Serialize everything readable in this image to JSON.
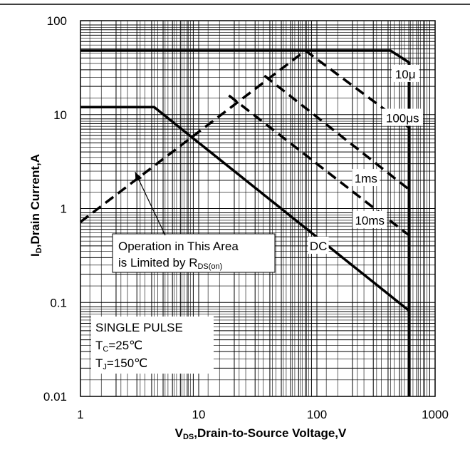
{
  "chart_data": {
    "type": "line",
    "title": "",
    "xscale": "log",
    "yscale": "log",
    "xlim": [
      1,
      1000
    ],
    "ylim": [
      0.01,
      100
    ],
    "grid": true,
    "xlabel": {
      "main": "V",
      "sub": "DS",
      "rest": ",Drain-to-Source Voltage,V"
    },
    "ylabel": {
      "main": "I",
      "sub": "D",
      "rest": ",Drain Current,A"
    },
    "xticks": [
      {
        "value": 1,
        "label": "1"
      },
      {
        "value": 10,
        "label": "10"
      },
      {
        "value": 100,
        "label": "100"
      },
      {
        "value": 1000,
        "label": "1000"
      }
    ],
    "yticks": [
      {
        "value": 0.01,
        "label": "0.01"
      },
      {
        "value": 0.1,
        "label": "0.1"
      },
      {
        "value": 1,
        "label": "1"
      },
      {
        "value": 10,
        "label": "10"
      },
      {
        "value": 100,
        "label": "100"
      }
    ],
    "series": [
      {
        "name": "10μ",
        "style": "solid",
        "points": [
          [
            1,
            48
          ],
          [
            420,
            48
          ],
          [
            600,
            36
          ],
          [
            600,
            0.01
          ]
        ]
      },
      {
        "name": "DC",
        "style": "solid",
        "points": [
          [
            1,
            12
          ],
          [
            4.2,
            12
          ],
          [
            600,
            0.082
          ]
        ]
      },
      {
        "name": "100μs",
        "style": "dashed",
        "points": [
          [
            80,
            48
          ],
          [
            600,
            7.3
          ]
        ]
      },
      {
        "name": "1ms",
        "style": "dashed",
        "points": [
          [
            36,
            26
          ],
          [
            600,
            1.6
          ]
        ]
      },
      {
        "name": "10ms",
        "style": "dashed",
        "points": [
          [
            18,
            16
          ],
          [
            600,
            0.52
          ]
        ]
      },
      {
        "name": "",
        "style": "dashed",
        "points": [
          [
            1,
            0.72
          ],
          [
            80,
            48
          ]
        ]
      }
    ],
    "series_labels": [
      {
        "text": "10μ",
        "x": 560,
        "y": 27
      },
      {
        "text": "100μs",
        "x": 530,
        "y": 9.2
      },
      {
        "text": "1ms",
        "x": 260,
        "y": 2.1
      },
      {
        "text": "10ms",
        "x": 280,
        "y": 0.75
      },
      {
        "text": "DC",
        "x": 103,
        "y": 0.4
      }
    ],
    "annotations": [
      {
        "line1": "Operation in This Area",
        "line2_main": "is Limited by R",
        "line2_sub": "DS(on)",
        "box_anchor": [
          13,
          0.3
        ],
        "arrow_to": [
          2.9,
          2.45
        ]
      },
      {
        "line1": "SINGLE PULSE",
        "line2_main": "T",
        "line2_sub": "C",
        "line2_rest": "=25℃",
        "line3_main": "T",
        "line3_sub": "J",
        "line3_rest": "=150℃"
      }
    ]
  }
}
